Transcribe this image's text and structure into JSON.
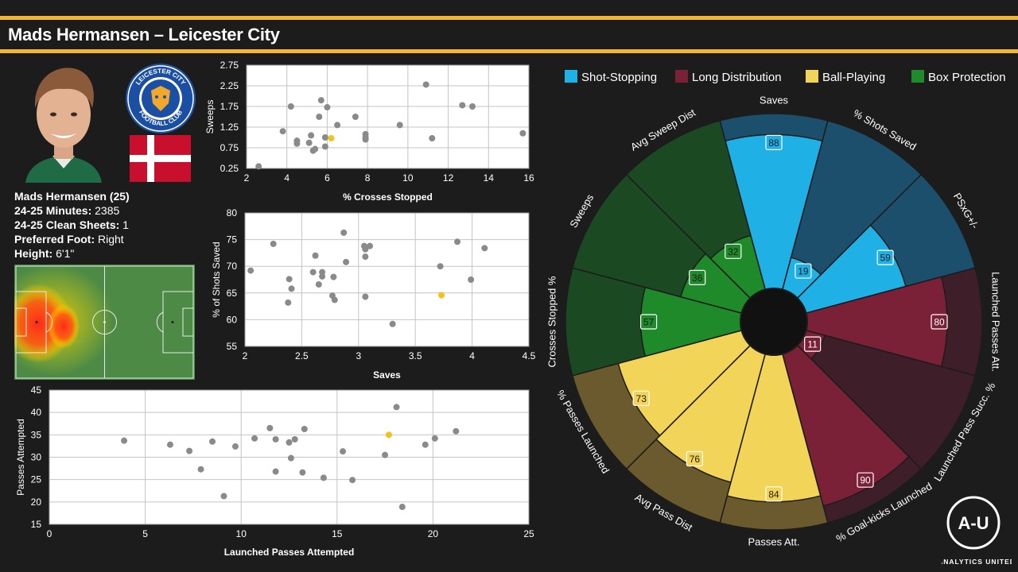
{
  "header": {
    "title": "Mads Hermansen – Leicester City"
  },
  "colors": {
    "accent": "#f2b632",
    "highlight": "#f2c21b",
    "other_points": "#8a8a8a"
  },
  "player": {
    "name_age": "Mads Hermansen (25)",
    "minutes_label": "24-25 Minutes:",
    "minutes_value": " 2385",
    "clean_label": "24-25 Clean Sheets:",
    "clean_value": " 1",
    "foot_label": "Preferred Foot:",
    "foot_value": " Right",
    "height_label": "Height:",
    "height_value": " 6'1\""
  },
  "club_crest": {
    "text_top": "LEICESTER CITY",
    "text_bottom": "FOOTBALL CLUB"
  },
  "flag": "denmark",
  "logo": {
    "text": "ANALYTICS UNITED",
    "mark": "A-U"
  },
  "chart_data": [
    {
      "type": "scatter",
      "xlabel": "% Crosses Stopped",
      "ylabel": "Sweeps",
      "xlim": [
        2,
        16
      ],
      "ylim": [
        0.25,
        2.75
      ],
      "xticks": [
        2,
        4,
        6,
        8,
        10,
        12,
        14,
        16
      ],
      "yticks": [
        "0.25",
        "0.75",
        "1.25",
        "1.75",
        "2.25",
        "2.75"
      ],
      "grid": true,
      "points": [
        [
          2.6,
          0.3
        ],
        [
          3.8,
          1.15
        ],
        [
          4.2,
          1.75
        ],
        [
          4.5,
          0.85
        ],
        [
          4.5,
          0.92
        ],
        [
          5.1,
          0.87
        ],
        [
          5.2,
          1.05
        ],
        [
          5.3,
          0.68
        ],
        [
          5.6,
          1.5
        ],
        [
          5.4,
          0.72
        ],
        [
          5.7,
          1.9
        ],
        [
          5.9,
          1.0
        ],
        [
          5.9,
          0.78
        ],
        [
          6.0,
          1.73
        ],
        [
          6.5,
          1.3
        ],
        [
          7.4,
          1.5
        ],
        [
          7.9,
          1.08
        ],
        [
          7.9,
          0.95
        ],
        [
          7.9,
          1.0
        ],
        [
          9.6,
          1.3
        ],
        [
          10.9,
          2.28
        ],
        [
          11.2,
          0.98
        ],
        [
          12.7,
          1.78
        ],
        [
          13.2,
          1.75
        ],
        [
          15.7,
          1.1
        ]
      ],
      "highlight": [
        6.2,
        0.98
      ]
    },
    {
      "type": "scatter",
      "xlabel": "Saves",
      "ylabel": "% of Shots Saved",
      "xlim": [
        2,
        4.5
      ],
      "ylim": [
        55,
        80
      ],
      "xticks": [
        "2",
        "2.5",
        "3",
        "3.5",
        "4",
        "4.5"
      ],
      "yticks": [
        55,
        60,
        65,
        70,
        75,
        80
      ],
      "grid": true,
      "points": [
        [
          2.05,
          69.2
        ],
        [
          2.25,
          74.2
        ],
        [
          2.38,
          63.2
        ],
        [
          2.39,
          67.6
        ],
        [
          2.41,
          65.8
        ],
        [
          2.6,
          68.9
        ],
        [
          2.62,
          72.0
        ],
        [
          2.65,
          66.6
        ],
        [
          2.68,
          68.1
        ],
        [
          2.68,
          68.9
        ],
        [
          2.77,
          64.5
        ],
        [
          2.78,
          68.0
        ],
        [
          2.79,
          63.7
        ],
        [
          2.87,
          76.3
        ],
        [
          2.89,
          70.8
        ],
        [
          3.05,
          73.8
        ],
        [
          3.06,
          71.8
        ],
        [
          3.06,
          73.2
        ],
        [
          3.06,
          64.3
        ],
        [
          3.1,
          73.8
        ],
        [
          3.3,
          59.2
        ],
        [
          3.72,
          70.0
        ],
        [
          3.87,
          74.6
        ],
        [
          3.99,
          67.5
        ],
        [
          4.11,
          73.4
        ]
      ],
      "highlight": [
        3.73,
        64.6
      ]
    },
    {
      "type": "scatter",
      "xlabel": "Launched Passes Attempted",
      "ylabel": "Passes Attempted",
      "xlim": [
        0,
        25
      ],
      "ylim": [
        15,
        45
      ],
      "xticks": [
        0,
        5,
        10,
        15,
        20,
        25
      ],
      "yticks": [
        15,
        20,
        25,
        30,
        35,
        40,
        45
      ],
      "grid": true,
      "points": [
        [
          3.9,
          33.7
        ],
        [
          6.3,
          32.8
        ],
        [
          7.3,
          31.4
        ],
        [
          7.9,
          27.3
        ],
        [
          8.5,
          33.5
        ],
        [
          9.1,
          21.3
        ],
        [
          9.7,
          32.4
        ],
        [
          10.7,
          34.2
        ],
        [
          11.5,
          36.5
        ],
        [
          11.8,
          34.0
        ],
        [
          11.8,
          26.8
        ],
        [
          12.5,
          33.3
        ],
        [
          12.6,
          29.8
        ],
        [
          12.8,
          34.0
        ],
        [
          13.2,
          26.6
        ],
        [
          13.3,
          36.3
        ],
        [
          14.3,
          25.4
        ],
        [
          15.3,
          31.3
        ],
        [
          15.8,
          24.9
        ],
        [
          17.5,
          30.5
        ],
        [
          18.1,
          41.2
        ],
        [
          18.4,
          18.9
        ],
        [
          19.6,
          32.8
        ],
        [
          20.1,
          34.2
        ],
        [
          21.2,
          35.8
        ]
      ],
      "highlight": [
        17.7,
        35.0
      ]
    },
    {
      "type": "pizza",
      "legend": [
        {
          "name": "Shot-Stopping",
          "color": "#1fb0e6"
        },
        {
          "name": "Long Distribution",
          "color": "#7a2138"
        },
        {
          "name": "Ball-Playing",
          "color": "#f2d459"
        },
        {
          "name": "Box Protection",
          "color": "#1e8a2a"
        }
      ],
      "slices": [
        {
          "label": "Saves",
          "value": 88,
          "group": 0
        },
        {
          "label": "% Shots Saved",
          "value": 19,
          "group": 0
        },
        {
          "label": "PSxG+/-",
          "value": 59,
          "group": 0
        },
        {
          "label": "Launched Passes Att.",
          "value": 80,
          "group": 1
        },
        {
          "label": "Launched Pass Succ. %",
          "value": 11,
          "group": 1
        },
        {
          "label": "% Goal-kicks Launched",
          "value": 90,
          "group": 1
        },
        {
          "label": "Passes Att.",
          "value": 84,
          "group": 2
        },
        {
          "label": "Avg Pass Dist",
          "value": 76,
          "group": 2
        },
        {
          "label": "% Passes Launched",
          "value": 73,
          "group": 2
        },
        {
          "label": "Crosses Stopped %",
          "value": 57,
          "group": 3
        },
        {
          "label": "Sweeps",
          "value": 36,
          "group": 3
        },
        {
          "label": "Avg Sweep Dist",
          "value": 32,
          "group": 3
        }
      ]
    }
  ]
}
